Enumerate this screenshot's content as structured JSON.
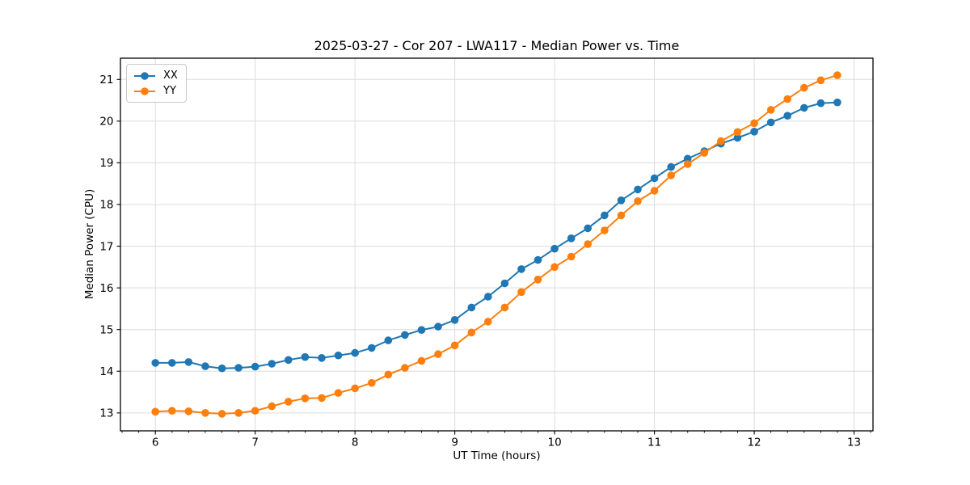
{
  "figure": {
    "title": "2025-03-27 - Cor 207 - LWA117 - Median Power vs. Time",
    "background_color": "#ffffff"
  },
  "chart_data": {
    "type": "line",
    "title": "2025-03-27 - Cor 207 - LWA117 - Median Power vs. Time",
    "xlabel": "UT Time (hours)",
    "ylabel": "Median Power (CPU)",
    "xlim": [
      5.65,
      13.19
    ],
    "ylim": [
      12.57,
      21.51
    ],
    "x_ticks": [
      6,
      7,
      8,
      9,
      10,
      11,
      12,
      13
    ],
    "y_ticks": [
      13,
      14,
      15,
      16,
      17,
      18,
      19,
      20,
      21
    ],
    "x_minor_tick_step_hours": 0.1667,
    "grid": true,
    "grid_color": "#dcdcdc",
    "spine_color": "#000000",
    "legend": {
      "position": "upper left"
    },
    "marker": "circle",
    "x": [
      6.0,
      6.167,
      6.333,
      6.5,
      6.667,
      6.833,
      7.0,
      7.167,
      7.333,
      7.5,
      7.667,
      7.833,
      8.0,
      8.167,
      8.333,
      8.5,
      8.667,
      8.833,
      9.0,
      9.167,
      9.333,
      9.5,
      9.667,
      9.833,
      10.0,
      10.167,
      10.333,
      10.5,
      10.667,
      10.833,
      11.0,
      11.167,
      11.333,
      11.5,
      11.667,
      11.833,
      12.0,
      12.167,
      12.333,
      12.5,
      12.667,
      12.833
    ],
    "series": [
      {
        "name": "XX",
        "color": "#1f77b4",
        "values": [
          14.2,
          14.2,
          14.22,
          14.12,
          14.07,
          14.08,
          14.11,
          14.18,
          14.27,
          14.34,
          14.32,
          14.38,
          14.44,
          14.56,
          14.74,
          14.87,
          14.99,
          15.07,
          15.23,
          15.53,
          15.79,
          16.11,
          16.45,
          16.67,
          16.94,
          17.19,
          17.43,
          17.74,
          18.1,
          18.36,
          18.63,
          18.9,
          19.1,
          19.28,
          19.46,
          19.6,
          19.75,
          19.97,
          20.13,
          20.32,
          20.43,
          20.45
        ]
      },
      {
        "name": "YY",
        "color": "#ff7f0e",
        "values": [
          13.03,
          13.05,
          13.04,
          13.0,
          12.98,
          13.0,
          13.05,
          13.16,
          13.27,
          13.35,
          13.36,
          13.48,
          13.59,
          13.72,
          13.92,
          14.08,
          14.25,
          14.41,
          14.62,
          14.93,
          15.19,
          15.53,
          15.9,
          16.2,
          16.5,
          16.75,
          17.05,
          17.38,
          17.74,
          18.08,
          18.33,
          18.7,
          18.97,
          19.24,
          19.52,
          19.74,
          19.95,
          20.27,
          20.53,
          20.8,
          20.98,
          21.1
        ]
      }
    ]
  }
}
